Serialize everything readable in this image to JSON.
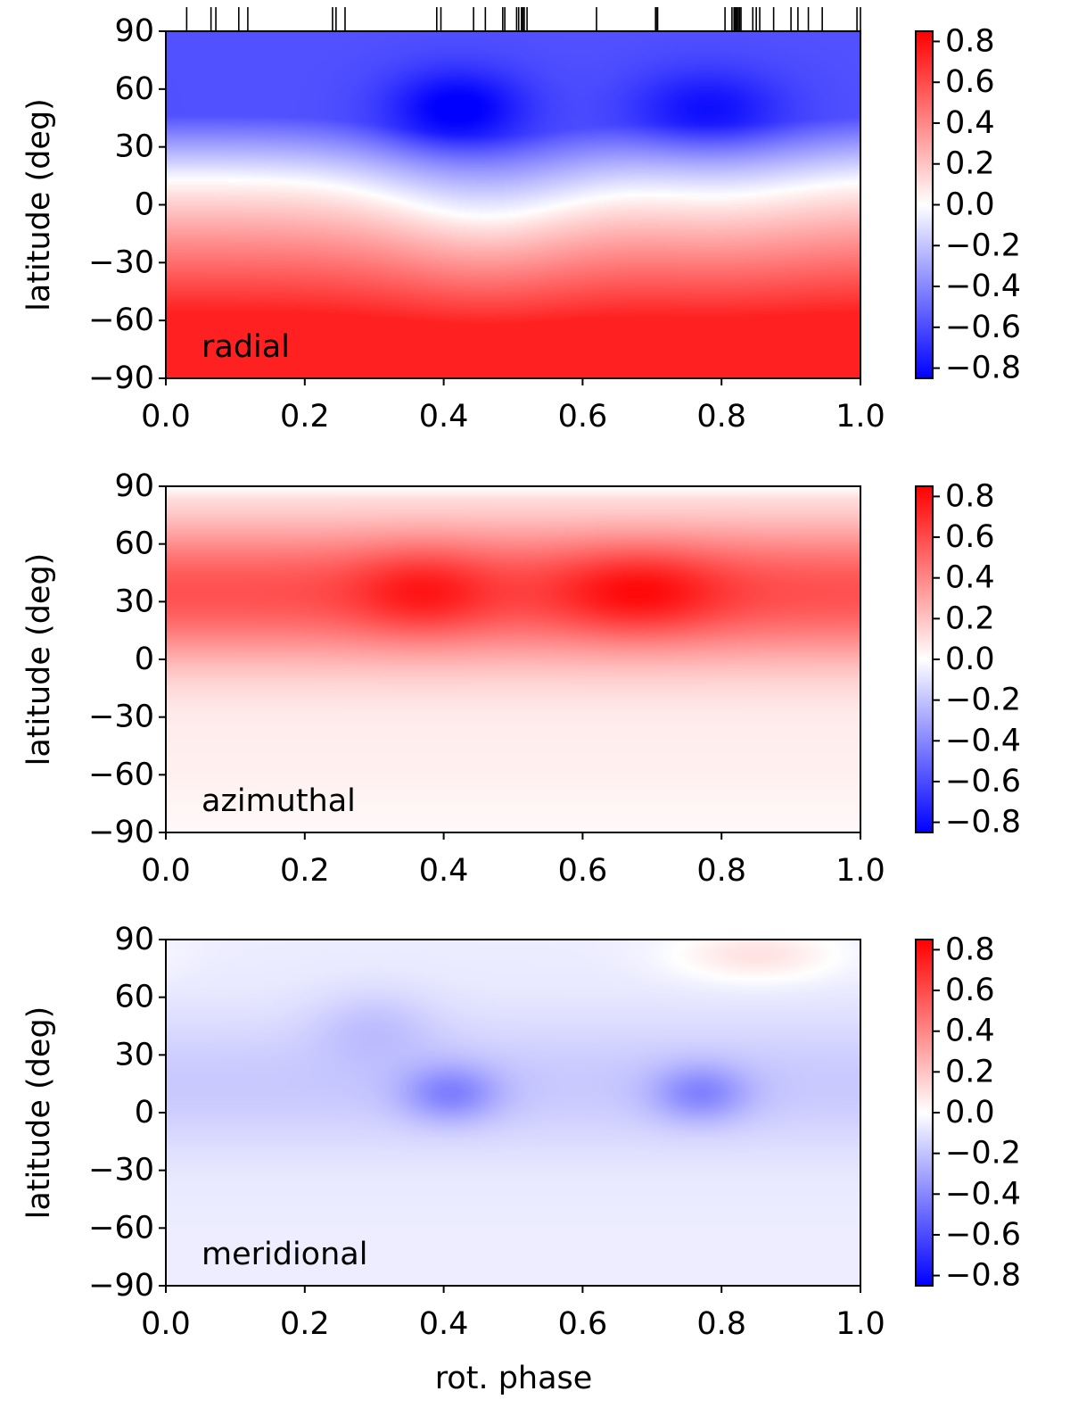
{
  "chart_data": [
    {
      "type": "heatmap",
      "panel_label": "radial",
      "xlabel": "",
      "ylabel": "latitude (deg)",
      "xlim": [
        0.0,
        1.0
      ],
      "ylim": [
        -90,
        90
      ],
      "x_ticks": [
        "0.0",
        "0.2",
        "0.4",
        "0.6",
        "0.8",
        "1.0"
      ],
      "y_ticks": [
        "90",
        "60",
        "30",
        "0",
        "−30",
        "−60",
        "−90"
      ],
      "colorbar": {
        "range": [
          -0.85,
          0.85
        ],
        "ticks": [
          "0.8",
          "0.6",
          "0.4",
          "0.2",
          "0.0",
          "−0.2",
          "−0.4",
          "−0.6",
          "−0.8"
        ]
      },
      "observed_phases": [
        0.03,
        0.065,
        0.072,
        0.105,
        0.118,
        0.24,
        0.245,
        0.258,
        0.39,
        0.396,
        0.443,
        0.46,
        0.485,
        0.488,
        0.505,
        0.508,
        0.512,
        0.514,
        0.516,
        0.52,
        0.62,
        0.705,
        0.706,
        0.708,
        0.805,
        0.815,
        0.818,
        0.82,
        0.822,
        0.824,
        0.826,
        0.828,
        0.845,
        0.85,
        0.855,
        0.875,
        0.9,
        0.91,
        0.925,
        0.945,
        0.995,
        1.0
      ],
      "field_description": "negative (blue) in northern hemisphere with minima near phase 0.42 and 0.78 at latitude ~50; positive (red) in southern hemisphere; zero line near latitude 15 at phase 0 dipping to about -8 around phase 0.45"
    },
    {
      "type": "heatmap",
      "panel_label": "azimuthal",
      "xlabel": "",
      "ylabel": "latitude (deg)",
      "xlim": [
        0.0,
        1.0
      ],
      "ylim": [
        -90,
        90
      ],
      "x_ticks": [
        "0.0",
        "0.2",
        "0.4",
        "0.6",
        "0.8",
        "1.0"
      ],
      "y_ticks": [
        "90",
        "60",
        "30",
        "0",
        "−30",
        "−60",
        "−90"
      ],
      "colorbar": {
        "range": [
          -0.85,
          0.85
        ],
        "ticks": [
          "0.8",
          "0.6",
          "0.4",
          "0.2",
          "0.0",
          "−0.2",
          "−0.4",
          "−0.6",
          "−0.8"
        ]
      },
      "field_description": "positive (red) band centred near latitude 35 with maxima near phase 0.37 and 0.68; weak positive in southern hemisphere; near zero at the pole"
    },
    {
      "type": "heatmap",
      "panel_label": "meridional",
      "xlabel": "rot. phase",
      "ylabel": "latitude (deg)",
      "xlim": [
        0.0,
        1.0
      ],
      "ylim": [
        -90,
        90
      ],
      "x_ticks": [
        "0.0",
        "0.2",
        "0.4",
        "0.6",
        "0.8",
        "1.0"
      ],
      "y_ticks": [
        "90",
        "60",
        "30",
        "0",
        "−30",
        "−60",
        "−90"
      ],
      "colorbar": {
        "range": [
          -0.85,
          0.85
        ],
        "ticks": [
          "0.8",
          "0.6",
          "0.4",
          "0.2",
          "0.0",
          "−0.2",
          "−0.4",
          "−0.6",
          "−0.8"
        ]
      },
      "field_description": "weak negative (light blue) with minima near phase 0.41 and 0.77 at latitude ~10; weak positive near phase 0.85 at latitude ~80"
    }
  ],
  "colors": {
    "negative": "#0000ff",
    "zero": "#ffffff",
    "positive": "#ff0000",
    "axis": "#000000"
  }
}
